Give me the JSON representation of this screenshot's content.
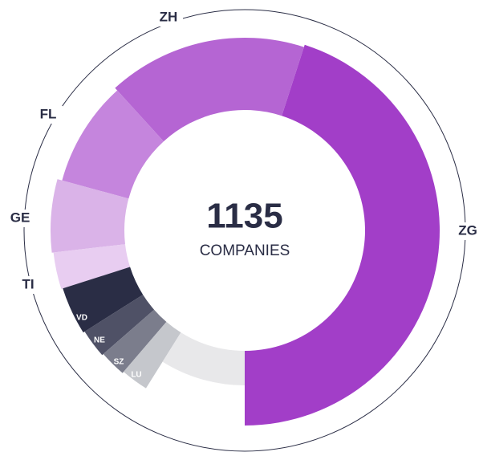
{
  "chart_data": {
    "type": "donut",
    "total": 1135,
    "total_label": "COMPANIES",
    "categories": [
      "ZG",
      "ZH",
      "FL",
      "GE",
      "TI",
      "VD",
      "NE",
      "SZ",
      "LU",
      null
    ],
    "values": [
      511,
      190,
      102,
      69,
      35,
      46,
      28,
      26,
      27,
      101
    ],
    "colors": [
      "#a23ec8",
      "#b565d3",
      "#c585dd",
      "#dab3e8",
      "#e8cdf1",
      "#2a2d45",
      "#4f5166",
      "#7b7d8c",
      "#c5c7cc",
      "#e8e8ea"
    ]
  }
}
